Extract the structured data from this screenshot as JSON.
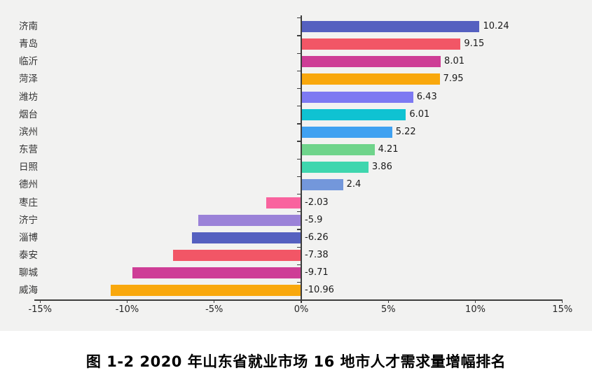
{
  "caption": "图 1-2 2020 年山东省就业市场 16 地市人才需求量增幅排名",
  "chart_data": {
    "type": "bar",
    "orientation": "horizontal",
    "title": "图 1-2 2020 年山东省就业市场 16 地市人才需求量增幅排名",
    "xlabel": "",
    "ylabel": "",
    "grid": false,
    "legend": false,
    "categories": [
      "济南",
      "青岛",
      "临沂",
      "菏泽",
      "潍坊",
      "烟台",
      "滨州",
      "东营",
      "日照",
      "德州",
      "枣庄",
      "济宁",
      "淄博",
      "泰安",
      "聊城",
      "威海"
    ],
    "values": [
      10.24,
      9.15,
      8.01,
      7.95,
      6.43,
      6.01,
      5.22,
      4.21,
      3.86,
      2.4,
      -2.03,
      -5.9,
      -6.26,
      -7.38,
      -9.71,
      -10.96
    ],
    "value_labels": [
      "10.24",
      "9.15",
      "8.01",
      "7.95",
      "6.43",
      "6.01",
      "5.22",
      "4.21",
      "3.86",
      "2.4",
      "-2.03",
      "-5.9",
      "-6.26",
      "-7.38",
      "-9.71",
      "-10.96"
    ],
    "bar_colors": [
      "#5560c0",
      "#f25666",
      "#ce3d96",
      "#f9a80d",
      "#7d79f2",
      "#0fc2d2",
      "#3fa1f1",
      "#6fd48b",
      "#3fd6ae",
      "#7397db",
      "#f9639e",
      "#9b82d8",
      "#5560c0",
      "#f25666",
      "#ce3d96",
      "#f9a80d"
    ],
    "x_axis": {
      "range": [
        -15,
        15
      ],
      "ticks": [
        -15,
        -10,
        -5,
        0,
        5,
        10,
        15
      ],
      "tick_labels": [
        "-15%",
        "-10%",
        "-5%",
        "0%",
        "5%",
        "10%",
        "15%"
      ]
    }
  },
  "colors": {
    "panel_bg": "#f2f2f1",
    "page_bg": "#ffffff",
    "axis": "#3d3d3d",
    "category_text": "#333333",
    "value_text": "#1a1a1a",
    "caption_text": "#000000"
  }
}
